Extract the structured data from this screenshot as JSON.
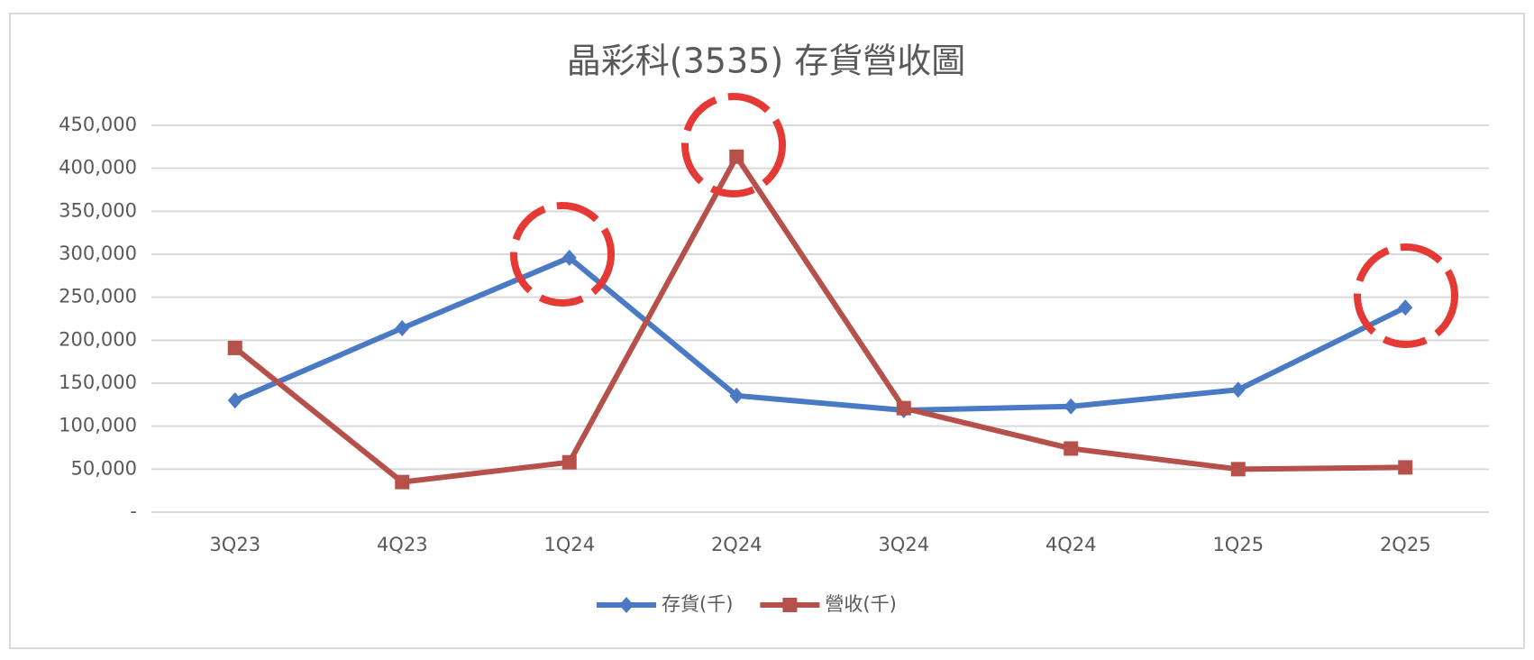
{
  "chart_data": {
    "type": "line",
    "title": "晶彩科(3535) 存貨營收圖",
    "categories": [
      "3Q23",
      "4Q23",
      "1Q24",
      "2Q24",
      "3Q24",
      "4Q24",
      "1Q25",
      "2Q25"
    ],
    "series": [
      {
        "name": "存貨(千)",
        "color": "#4a7ac4",
        "marker": "diamond",
        "values": [
          130000,
          214000,
          296000,
          135500,
          118500,
          123000,
          142400,
          238000
        ]
      },
      {
        "name": "營收(千)",
        "color": "#b5504b",
        "marker": "square",
        "values": [
          191000,
          35000,
          58000,
          413500,
          121000,
          74000,
          50000,
          52000
        ]
      }
    ],
    "ylim": [
      0,
      450000
    ],
    "yticks": [
      {
        "value": 0,
        "label": "-"
      },
      {
        "value": 50000,
        "label": "50,000"
      },
      {
        "value": 100000,
        "label": "100,000"
      },
      {
        "value": 150000,
        "label": "150,000"
      },
      {
        "value": 200000,
        "label": "200,000"
      },
      {
        "value": 250000,
        "label": "250,000"
      },
      {
        "value": 300000,
        "label": "300,000"
      },
      {
        "value": 350000,
        "label": "350,000"
      },
      {
        "value": 400000,
        "label": "400,000"
      },
      {
        "value": 450000,
        "label": "450,000"
      }
    ],
    "grid": true,
    "legend": "bottom"
  }
}
